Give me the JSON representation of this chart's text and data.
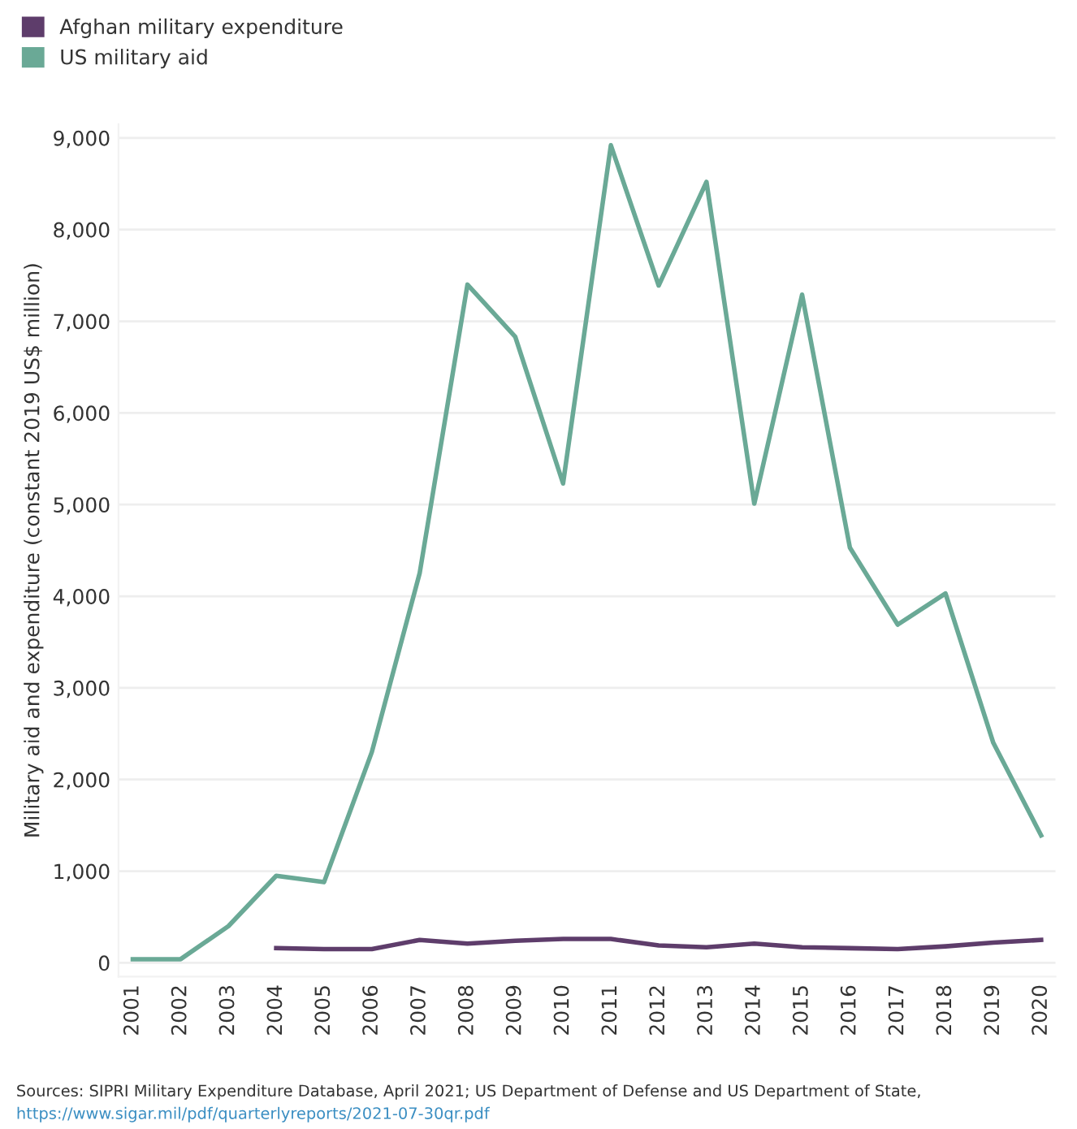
{
  "chart_data": {
    "type": "line",
    "ylabel": "Military aid and expenditure (constant 2019 US$ million)",
    "categories": [
      "2001",
      "2002",
      "2003",
      "2004",
      "2005",
      "2006",
      "2007",
      "2008",
      "2009",
      "2010",
      "2011",
      "2012",
      "2013",
      "2014",
      "2015",
      "2016",
      "2017",
      "2018",
      "2019",
      "2020"
    ],
    "series": [
      {
        "name": "Afghan military expenditure",
        "color": "#5e3d6b",
        "values": [
          null,
          null,
          null,
          160,
          150,
          150,
          250,
          210,
          240,
          260,
          260,
          190,
          170,
          210,
          170,
          160,
          150,
          180,
          220,
          250
        ]
      },
      {
        "name": "US military aid",
        "color": "#6aa996",
        "values": [
          40,
          40,
          400,
          950,
          880,
          2300,
          4250,
          7400,
          6830,
          5230,
          8920,
          7390,
          8520,
          5010,
          7290,
          4530,
          3690,
          4030,
          2400,
          1390
        ]
      }
    ],
    "ylim": [
      -150,
      9150
    ],
    "yticks": [
      {
        "value": 0,
        "label": "0"
      },
      {
        "value": 1000,
        "label": "1,000"
      },
      {
        "value": 2000,
        "label": "2,000"
      },
      {
        "value": 3000,
        "label": "3,000"
      },
      {
        "value": 4000,
        "label": "4,000"
      },
      {
        "value": 5000,
        "label": "5,000"
      },
      {
        "value": 6000,
        "label": "6,000"
      },
      {
        "value": 7000,
        "label": "7,000"
      },
      {
        "value": 8000,
        "label": "8,000"
      },
      {
        "value": 9000,
        "label": "9,000"
      }
    ],
    "grid": "y",
    "legend": "top left",
    "marker": "none",
    "line_style": "solid",
    "annotations": [
      "Sources: SIPRI Military Expenditure Database, April 2021; US Department of Defense and US Department of State,",
      "https://www.sigar.mil/pdf/quarterlyreports/2021-07-30qr.pdf"
    ]
  }
}
